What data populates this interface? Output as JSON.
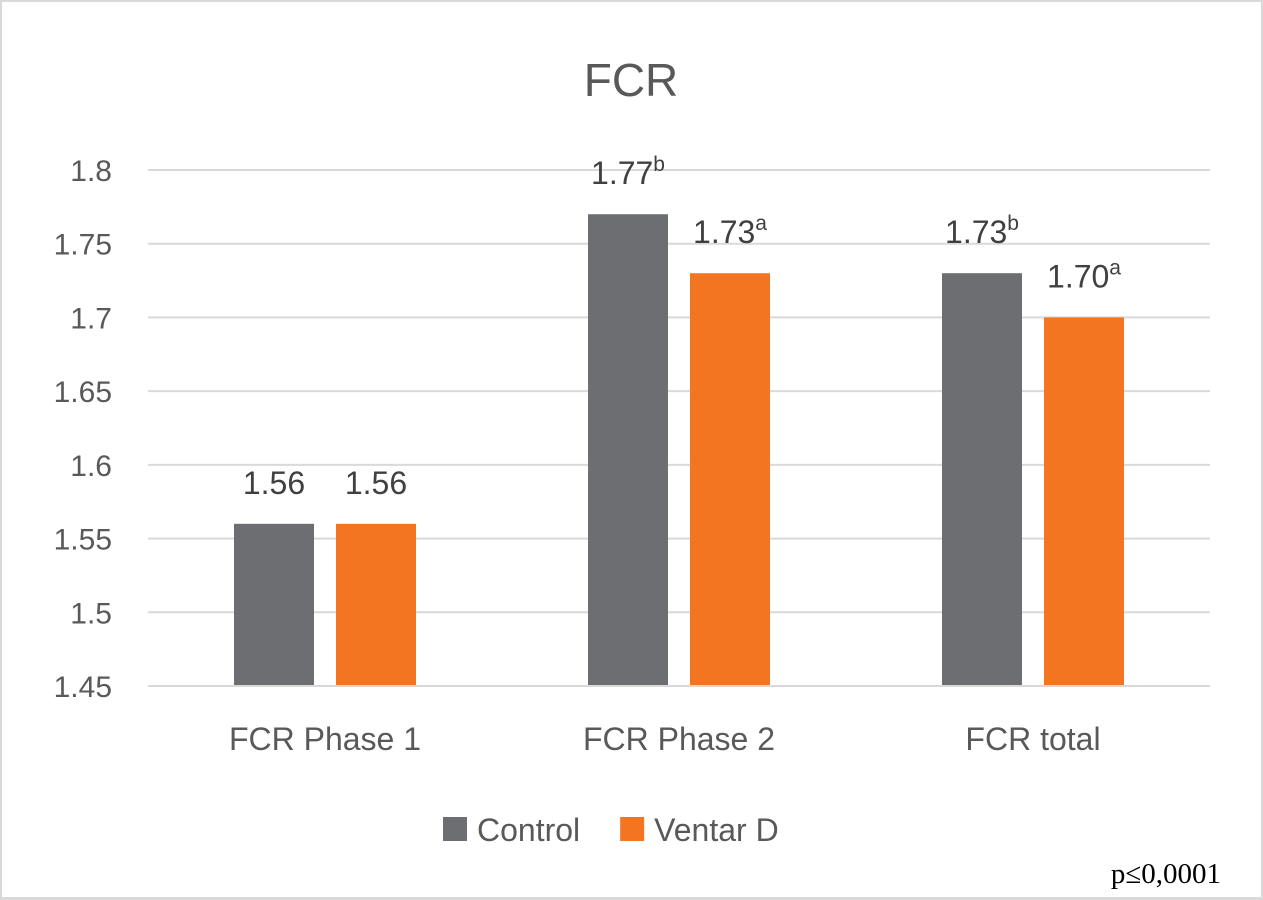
{
  "chart_data": {
    "type": "bar",
    "title": "FCR",
    "categories": [
      "FCR Phase 1",
      "FCR Phase 2",
      "FCR total"
    ],
    "series": [
      {
        "name": "Control",
        "color": "#6d6e71",
        "values": [
          1.56,
          1.77,
          1.73
        ],
        "labels": [
          "1.56",
          "1.77",
          "1.73"
        ],
        "superscripts": [
          "",
          "b",
          "b"
        ]
      },
      {
        "name": "Ventar D",
        "color": "#f47521",
        "values": [
          1.56,
          1.73,
          1.7
        ],
        "labels": [
          "1.56",
          "1.73",
          "1.70"
        ],
        "superscripts": [
          "",
          "a",
          "a"
        ]
      }
    ],
    "ylim": [
      1.45,
      1.8
    ],
    "yticks": [
      "1.45",
      "1.5",
      "1.55",
      "1.6",
      "1.65",
      "1.7",
      "1.75",
      "1.8"
    ],
    "grid": true,
    "legend": "bottom",
    "xlabel": "",
    "ylabel": ""
  },
  "annotation": "p≤0,0001"
}
